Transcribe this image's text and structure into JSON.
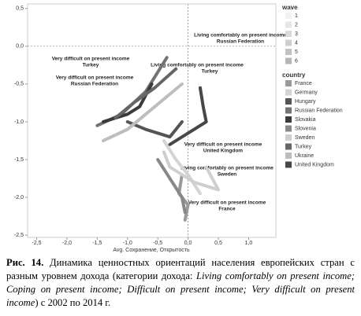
{
  "chart_data": {
    "type": "line",
    "x_label": "Avg. Сохранение, Открытость",
    "xlim": [
      -2.65,
      1.45
    ],
    "ylim": [
      -2.53,
      0.56
    ],
    "xticks": [
      {
        "value": -2.5,
        "label": "-2,5"
      },
      {
        "value": -2.0,
        "label": "-2,0"
      },
      {
        "value": -1.5,
        "label": "-1,5"
      },
      {
        "value": -1.0,
        "label": "-1,0"
      },
      {
        "value": -0.5,
        "label": "-0,5"
      },
      {
        "value": 0.0,
        "label": "0,0"
      },
      {
        "value": 0.5,
        "label": "0,5"
      },
      {
        "value": 1.0,
        "label": "1,0"
      }
    ],
    "yticks": [
      {
        "value": 0.5,
        "label": "0,5"
      },
      {
        "value": 0.0,
        "label": "0,0"
      },
      {
        "value": -0.5,
        "label": "-0,5"
      },
      {
        "value": -1.0,
        "label": "-1,0"
      },
      {
        "value": -1.5,
        "label": "-1,5"
      },
      {
        "value": -2.0,
        "label": "-2,0"
      },
      {
        "value": -2.5,
        "label": "-2,5"
      }
    ],
    "reference_lines": true,
    "wave_title": "wave",
    "waves": [
      1,
      2,
      3,
      4,
      5,
      6
    ],
    "wave_colors": [
      "#f2f2f2",
      "#e6e6e6",
      "#dadada",
      "#cecece",
      "#c2c2c2",
      "#b6b6b6"
    ],
    "legend_title": "country",
    "series": [
      {
        "name": "France",
        "color": "#9a9a9a",
        "x": [
          -0.1,
          -0.15,
          0.0,
          -0.05
        ],
        "values": [
          -1.7,
          -1.95,
          -2.1,
          -2.3
        ]
      },
      {
        "name": "Germany",
        "color": "#d4d4d4",
        "x": [
          -0.4,
          -0.2,
          0.0,
          0.2
        ],
        "values": [
          -1.25,
          -1.5,
          -1.7,
          -1.95
        ]
      },
      {
        "name": "Hungary",
        "color": "#555555",
        "x": [
          -1.0,
          -0.7,
          -0.3,
          -0.1
        ],
        "values": [
          -1.0,
          -1.1,
          -1.2,
          -1.0
        ]
      },
      {
        "name": "Russian Federation",
        "color": "#737373",
        "x": [
          -1.5,
          -1.1,
          -0.7,
          -0.35
        ],
        "values": [
          -1.05,
          -0.9,
          -0.6,
          -0.15
        ]
      },
      {
        "name": "Slovakia",
        "color": "#3a3a3a",
        "x": [
          -1.4,
          -1.0,
          -0.8,
          -0.6
        ],
        "values": [
          -1.0,
          -0.9,
          -0.8,
          -0.5
        ]
      },
      {
        "name": "Slovenia",
        "color": "#888888",
        "x": [
          -0.5,
          -0.3,
          -0.1,
          -0.05
        ],
        "values": [
          -1.5,
          -1.75,
          -2.0,
          -2.2
        ]
      },
      {
        "name": "Sweden",
        "color": "#cfcfcf",
        "x": [
          -0.4,
          -0.3,
          0.1,
          0.5,
          0.3
        ],
        "values": [
          -1.4,
          -1.6,
          -1.8,
          -1.9,
          -1.6
        ]
      },
      {
        "name": "Turkey",
        "color": "#666666",
        "x": [
          -1.2,
          -0.9,
          -0.55,
          -0.2
        ],
        "values": [
          -0.95,
          -0.75,
          -0.55,
          -0.3
        ]
      },
      {
        "name": "Ukraine",
        "color": "#bdbdbd",
        "x": [
          -1.4,
          -1.0,
          -0.7,
          -0.1
        ],
        "values": [
          -1.25,
          -1.1,
          -0.9,
          -0.5
        ]
      },
      {
        "name": "United Kingdom",
        "color": "#474747",
        "x": [
          0.2,
          0.25,
          0.3,
          -0.1,
          -0.3
        ],
        "values": [
          -0.55,
          -0.8,
          -1.0,
          -1.2,
          -1.3
        ]
      }
    ]
  },
  "annotations": [
    {
      "text": "Living comfortably on present income",
      "country": "Russian Federation"
    },
    {
      "text": "Very difficult on present income",
      "country": "Turkey"
    },
    {
      "text": "Living comfortably on present income",
      "country": "Turkey"
    },
    {
      "text": "Very difficult on present income",
      "country": "Russian Federation"
    },
    {
      "text": "Very difficult on present income",
      "country": "United Kingdom"
    },
    {
      "text": "Living comfortably on present income",
      "country": "Sweden"
    },
    {
      "text": "Very difficult on present income",
      "country": "France"
    }
  ],
  "caption": {
    "label": "Рис. 14.",
    "before": " Динамика ценностных ориентаций населения европейских стран с разным уровнем дохода (категории дохода: ",
    "italic": "Living comfortably on present income; Coping on present income; Difficult on present income; Very difficult on present income",
    "after": ") с 2002 по 2014 г."
  }
}
